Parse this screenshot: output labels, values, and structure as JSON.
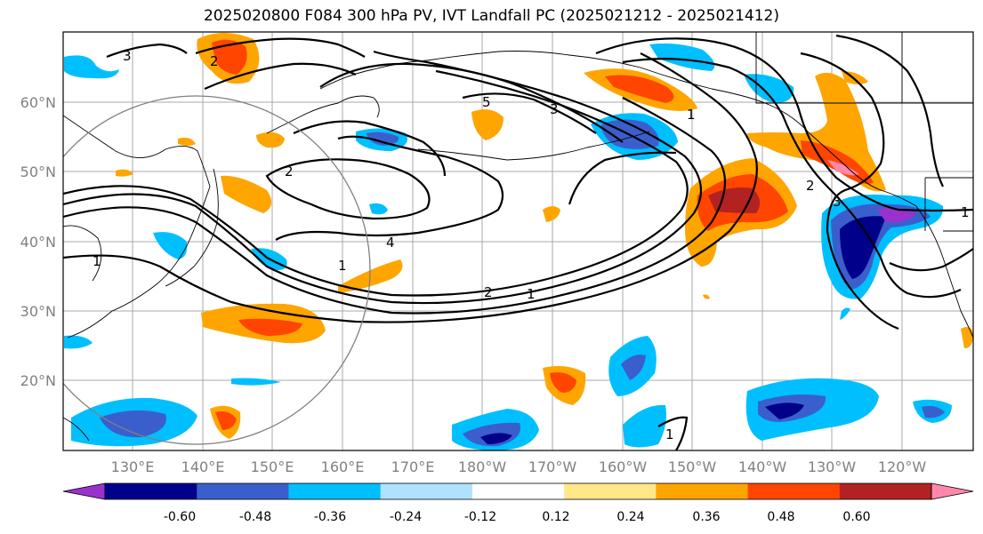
{
  "title": "2025020800 F084 300 hPa PV, IVT Landfall PC (2025021212 - 2025021412)",
  "lat_labels": [
    "60°N",
    "50°N",
    "40°N",
    "30°N",
    "20°N"
  ],
  "lon_labels": [
    "130°E",
    "140°E",
    "150°E",
    "160°E",
    "170°E",
    "180°W",
    "170°W",
    "160°W",
    "150°W",
    "140°W",
    "130°W",
    "120°W"
  ],
  "contour_labels": [
    "3",
    "2",
    "1",
    "5",
    "3",
    "1",
    "2",
    "4",
    "2",
    "1",
    "2",
    "1",
    "3",
    "1",
    "1"
  ],
  "colorbar": {
    "colors": [
      "#9932cc",
      "#00008b",
      "#3a5fcd",
      "#00bfff",
      "#b0e2ff",
      "#ffffff",
      "#ffe78a",
      "#ffa500",
      "#ff4500",
      "#b22222",
      "#ff88aa"
    ],
    "tick_labels": [
      "-0.60",
      "-0.48",
      "-0.36",
      "-0.24",
      "-0.12",
      "0.12",
      "0.24",
      "0.36",
      "0.48",
      "0.60"
    ]
  },
  "colors": {
    "grid": "#a9a9a9",
    "axis_text": "#808080",
    "circle": "#808080"
  }
}
